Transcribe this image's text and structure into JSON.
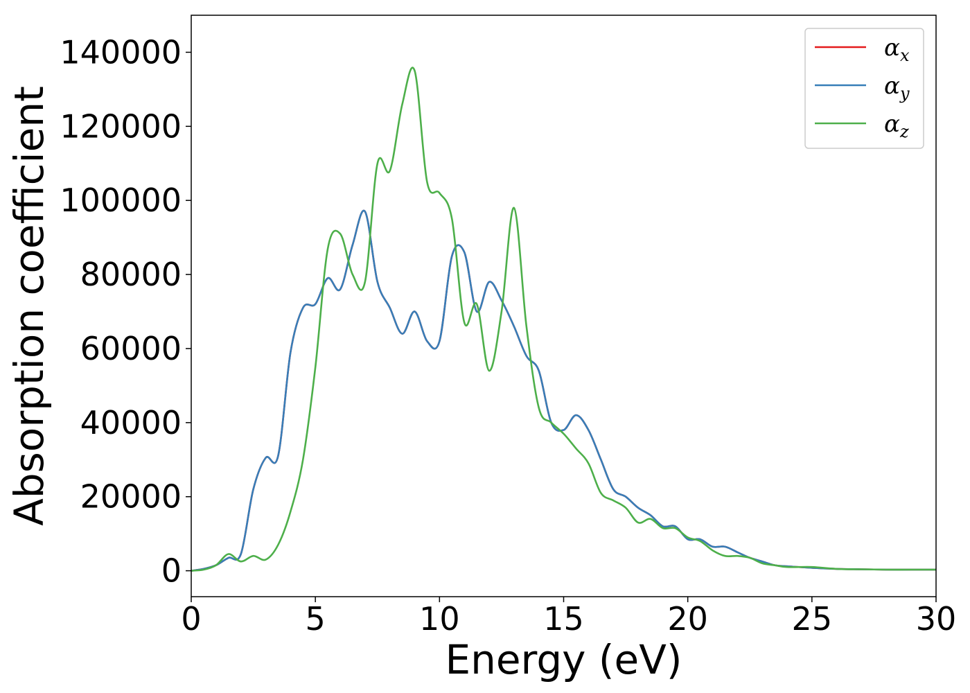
{
  "chart_data": {
    "type": "line",
    "xlabel": "Energy (eV)",
    "ylabel": "Absorption coefficient",
    "xlim": [
      0,
      30
    ],
    "ylim": [
      -7000,
      150000
    ],
    "xticks": [
      0,
      5,
      10,
      15,
      20,
      25,
      30
    ],
    "xtick_labels": [
      "0",
      "5",
      "10",
      "15",
      "20",
      "25",
      "30"
    ],
    "yticks": [
      0,
      20000,
      40000,
      60000,
      80000,
      100000,
      120000,
      140000
    ],
    "ytick_labels": [
      "0",
      "20000",
      "40000",
      "60000",
      "80000",
      "100000",
      "120000",
      "140000"
    ],
    "grid": false,
    "legend_position": "top-right",
    "x": [
      0,
      0.5,
      1,
      1.5,
      2,
      2.5,
      3,
      3.5,
      4,
      4.5,
      5,
      5.5,
      6,
      6.5,
      7,
      7.5,
      8,
      8.5,
      9,
      9.5,
      10,
      10.5,
      11,
      11.5,
      12,
      12.5,
      13,
      13.5,
      14,
      14.5,
      15,
      15.5,
      16,
      16.5,
      17,
      17.5,
      18,
      18.5,
      19,
      19.5,
      20,
      20.5,
      21,
      21.5,
      22,
      22.5,
      23,
      23.5,
      24,
      25,
      26,
      27,
      28,
      29,
      30
    ],
    "series": [
      {
        "name": "α",
        "subscript": "x",
        "color": "#e41a1c",
        "values": [
          0,
          500,
          1500,
          3500,
          4500,
          22000,
          30500,
          31000,
          59000,
          71000,
          72000,
          79000,
          76000,
          88000,
          97000,
          78000,
          71000,
          64000,
          70000,
          62000,
          62000,
          85000,
          86000,
          70000,
          78000,
          73000,
          66000,
          58000,
          54000,
          40000,
          38000,
          42000,
          38000,
          30000,
          22000,
          20000,
          17000,
          15000,
          12000,
          12000,
          8500,
          8500,
          6500,
          6500,
          5000,
          3500,
          2500,
          1500,
          1200,
          800,
          500,
          400,
          300,
          300,
          300
        ]
      },
      {
        "name": "α",
        "subscript": "y",
        "color": "#377eb8",
        "values": [
          0,
          500,
          1500,
          3500,
          4500,
          22000,
          30500,
          31000,
          59000,
          71000,
          72000,
          79000,
          76000,
          88000,
          97000,
          78000,
          71000,
          64000,
          70000,
          62000,
          62000,
          85000,
          86000,
          70000,
          78000,
          73000,
          66000,
          58000,
          54000,
          40000,
          38000,
          42000,
          38000,
          30000,
          22000,
          20000,
          17000,
          15000,
          12000,
          12000,
          8500,
          8500,
          6500,
          6500,
          5000,
          3500,
          2500,
          1500,
          1200,
          800,
          500,
          400,
          300,
          300,
          300
        ]
      },
      {
        "name": "α",
        "subscript": "z",
        "color": "#4daf4a",
        "values": [
          0,
          300,
          1500,
          4500,
          2500,
          4000,
          3000,
          7000,
          16000,
          30000,
          55000,
          87000,
          91000,
          80000,
          78000,
          110000,
          108000,
          126000,
          135000,
          105000,
          102000,
          95000,
          67000,
          72000,
          54000,
          70000,
          98000,
          66000,
          44000,
          40000,
          37000,
          33000,
          29000,
          21000,
          19000,
          17000,
          13000,
          14000,
          11500,
          11500,
          9000,
          8000,
          5500,
          4000,
          4000,
          3500,
          2000,
          1500,
          1000,
          1000,
          500,
          400,
          300,
          300,
          300
        ]
      }
    ]
  }
}
